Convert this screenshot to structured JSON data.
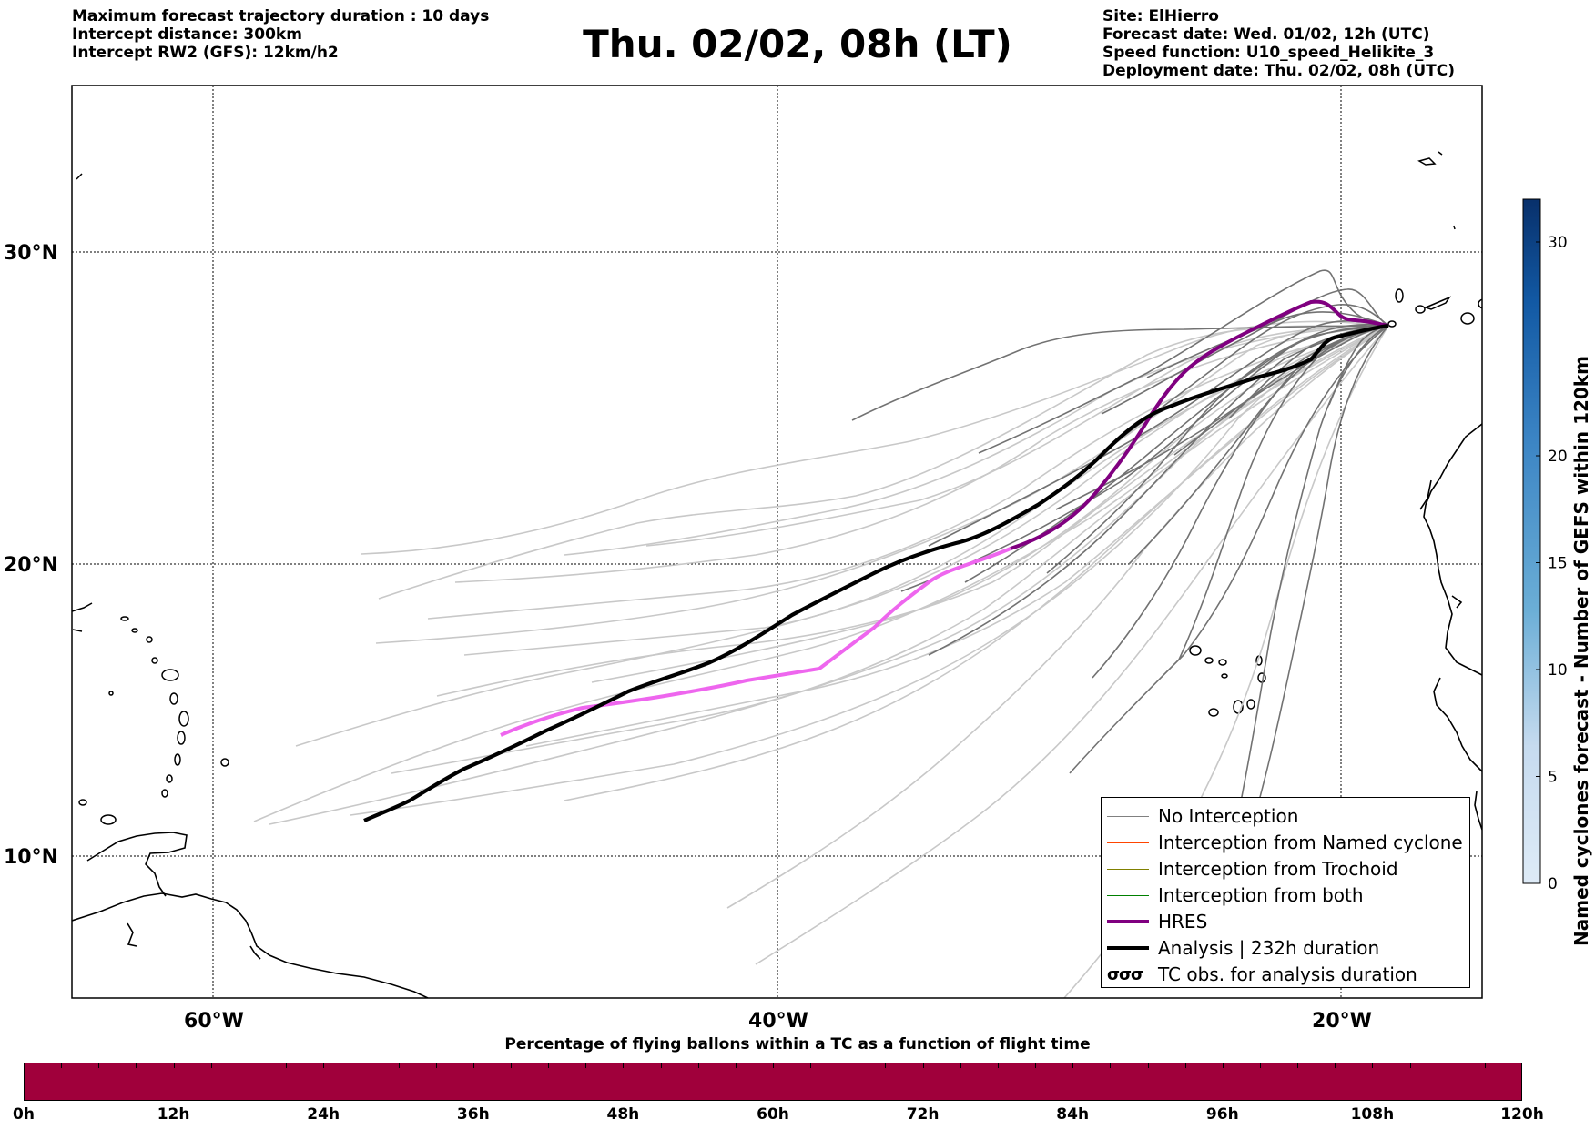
{
  "header_left": {
    "line1": "Maximum forecast trajectory duration : 10 days",
    "line2": "Intercept distance: 300km",
    "line3": "Intercept RW2 (GFS):  12km/h2"
  },
  "title": "Thu. 02/02, 08h (LT)",
  "header_right": {
    "site": "Site: ElHierro",
    "forecast_date": "Forecast date: Wed. 01/02, 12h (UTC)",
    "speed_function": "Speed function: U10_speed_Helikite_3",
    "deployment_date": "Deployment date: Thu. 02/02, 08h (UTC)"
  },
  "map": {
    "lat_labels": [
      "30°N",
      "20°N",
      "10°N"
    ],
    "lon_labels": [
      "60°W",
      "40°W",
      "20°W"
    ]
  },
  "legend": {
    "items": [
      {
        "label": "No Interception",
        "color": "#808080"
      },
      {
        "label": "Interception from Named cyclone",
        "color": "#ff4500"
      },
      {
        "label": "Interception from Trochoid",
        "color": "#808000"
      },
      {
        "label": "Interception from both",
        "color": "#008000"
      },
      {
        "label": "HRES",
        "color": "#800080"
      },
      {
        "label": "Analysis | 232h duration",
        "color": "#000000"
      },
      {
        "label": "TC obs. for analysis duration",
        "glyph": "σσσ"
      }
    ]
  },
  "colorbar": {
    "title": "Named cyclones forecast - Number of GEFS within 120km",
    "ticks": [
      "0",
      "5",
      "10",
      "15",
      "20",
      "30"
    ],
    "tick_values": [
      0,
      5,
      10,
      15,
      20,
      30
    ],
    "max": 32,
    "colors": [
      "#deebf7",
      "#9ecae1",
      "#4292c6",
      "#2171b5",
      "#08519c",
      "#08306b"
    ]
  },
  "flight_bar": {
    "title": "Percentage of flying ballons within a TC as a function of flight time",
    "color": "#a0003b",
    "tick_labels": [
      "0h",
      "12h",
      "24h",
      "36h",
      "48h",
      "60h",
      "72h",
      "84h",
      "96h",
      "108h",
      "120h"
    ]
  }
}
